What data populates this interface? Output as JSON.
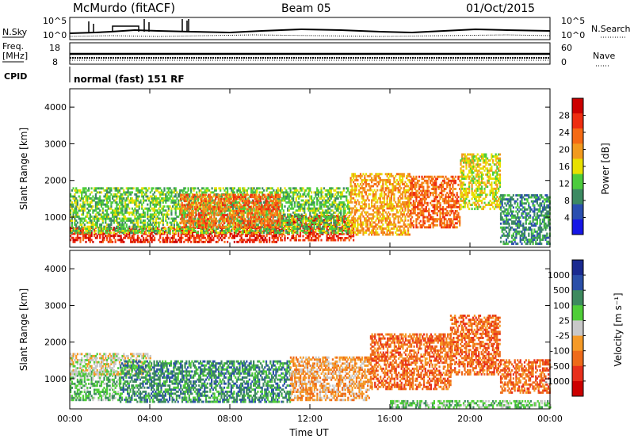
{
  "header": {
    "station": "McMurdo (fitACF)",
    "beam": "Beam 05",
    "date": "01/Oct/2015"
  },
  "top_panels": {
    "nsky_label": "N.Sky",
    "nsearch_label": "N.Search",
    "noise_ticks": [
      "10^5",
      "10^0"
    ],
    "freq_label_1": "Freq.",
    "freq_label_2": "[MHz]",
    "freq_ticks": [
      "18",
      "8"
    ],
    "nave_label": "Nave",
    "nave_ticks": [
      "60",
      "0"
    ],
    "cpid_label": "CPID",
    "cpid_text": "normal (fast) 151 RF"
  },
  "colors": {
    "power": [
      "#1616e6",
      "#2a4fb0",
      "#3c8a62",
      "#4ccc3c",
      "#e8e000",
      "#f29a1e",
      "#f56a14",
      "#ee2d10",
      "#cc0000"
    ],
    "velocity": [
      "#cc0000",
      "#e8301c",
      "#ee6a1a",
      "#f59a28",
      "#c8c8c8",
      "#4fce38",
      "#3d8a5e",
      "#2a4fa8",
      "#1a2a90"
    ]
  },
  "chart_data": [
    {
      "type": "heatmap",
      "title": "Power",
      "xlabel": "",
      "ylabel": "Slant Range [km]",
      "x_ticks": [
        "00:00",
        "04:00",
        "08:00",
        "12:00",
        "16:00",
        "20:00",
        "00:00"
      ],
      "xlim_hours": [
        0,
        24
      ],
      "y_ticks": [
        1000,
        2000,
        3000,
        4000
      ],
      "ylim": [
        180,
        4500
      ],
      "colorbar_label": "Power [dB]",
      "colorbar_ticks": [
        4,
        8,
        12,
        16,
        20,
        24,
        28
      ],
      "colorbar_range": [
        0,
        32
      ],
      "scatter_regions": [
        {
          "t0": 0.0,
          "t1": 10.5,
          "r0": 300,
          "r1": 700,
          "level": 27
        },
        {
          "t0": 10.5,
          "t1": 14.2,
          "r0": 350,
          "r1": 1050,
          "level": 27
        },
        {
          "t0": 0.0,
          "t1": 14.0,
          "r0": 550,
          "r1": 1800,
          "level": 11
        },
        {
          "t0": 5.5,
          "t1": 10.5,
          "r0": 700,
          "r1": 1600,
          "level": 22
        },
        {
          "t0": 14.0,
          "t1": 17.0,
          "r0": 500,
          "r1": 2200,
          "level": 20
        },
        {
          "t0": 17.0,
          "t1": 19.5,
          "r0": 700,
          "r1": 2100,
          "level": 24
        },
        {
          "t0": 19.5,
          "t1": 21.5,
          "r0": 1200,
          "r1": 2700,
          "level": 14
        },
        {
          "t0": 21.5,
          "t1": 24.0,
          "r0": 250,
          "r1": 1600,
          "level": 9
        }
      ]
    },
    {
      "type": "heatmap",
      "title": "Velocity",
      "xlabel": "Time UT",
      "ylabel": "Slant Range [km]",
      "x_ticks": [
        "00:00",
        "04:00",
        "08:00",
        "12:00",
        "16:00",
        "20:00",
        "00:00"
      ],
      "xlim_hours": [
        0,
        24
      ],
      "y_ticks": [
        1000,
        2000,
        3000,
        4000
      ],
      "ylim": [
        180,
        4500
      ],
      "colorbar_label": "Velocity [m s⁻¹]",
      "colorbar_ticks": [
        "1000",
        "500",
        "100",
        "25",
        "-25",
        "-100",
        "-500",
        "-1000"
      ],
      "colorbar_range": [
        -1000,
        1000
      ],
      "scatter_regions": [
        {
          "t0": 0.0,
          "t1": 2.5,
          "r0": 400,
          "r1": 1200,
          "level": 5
        },
        {
          "t0": 0.0,
          "t1": 4.0,
          "r0": 1100,
          "r1": 1700,
          "level": 4
        },
        {
          "t0": 2.5,
          "t1": 11.0,
          "r0": 350,
          "r1": 1500,
          "level": 6
        },
        {
          "t0": 11.0,
          "t1": 15.0,
          "r0": 400,
          "r1": 1600,
          "level": 3
        },
        {
          "t0": 15.0,
          "t1": 19.0,
          "r0": 700,
          "r1": 2200,
          "level": 2
        },
        {
          "t0": 19.0,
          "t1": 21.5,
          "r0": 1100,
          "r1": 2700,
          "level": 2
        },
        {
          "t0": 21.5,
          "t1": 24.0,
          "r0": 600,
          "r1": 1500,
          "level": 2
        },
        {
          "t0": 16.0,
          "t1": 24.0,
          "r0": 200,
          "r1": 400,
          "level": 5
        }
      ]
    }
  ]
}
